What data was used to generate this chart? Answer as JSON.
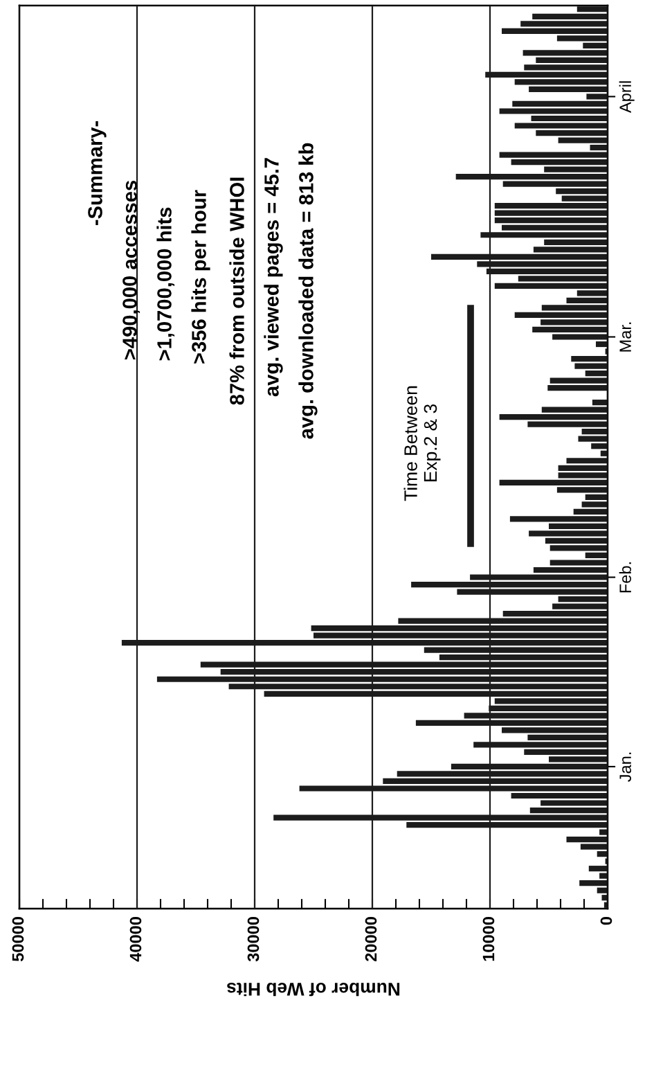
{
  "chart_data": {
    "type": "bar",
    "orientation": "horizontal",
    "xlabel": "Number of Web Hits",
    "categories": [
      null,
      null,
      null,
      null,
      null,
      null,
      null,
      null,
      null,
      null,
      null,
      null,
      "April",
      null,
      null,
      null,
      null,
      null,
      null,
      null,
      null,
      null,
      null,
      null,
      null,
      null,
      null,
      null,
      null,
      null,
      null,
      null,
      null,
      null,
      null,
      null,
      null,
      null,
      null,
      null,
      null,
      null,
      null,
      null,
      null,
      "Mar.",
      null,
      null,
      null,
      null,
      null,
      null,
      null,
      null,
      null,
      null,
      null,
      null,
      null,
      null,
      null,
      null,
      null,
      null,
      null,
      null,
      null,
      null,
      null,
      null,
      null,
      null,
      null,
      null,
      null,
      null,
      null,
      null,
      "Feb.",
      null,
      null,
      null,
      null,
      null,
      null,
      null,
      null,
      null,
      null,
      null,
      null,
      null,
      null,
      null,
      null,
      null,
      null,
      null,
      null,
      null,
      null,
      null,
      null,
      null,
      "Jan.",
      null,
      null,
      null,
      null,
      null,
      null,
      null,
      null,
      null,
      null,
      null,
      null,
      null,
      null,
      null,
      null,
      null,
      null,
      null
    ],
    "values": [
      2600,
      6400,
      7400,
      9000,
      4300,
      2100,
      7200,
      6100,
      7100,
      10400,
      7900,
      6700,
      1800,
      8100,
      9200,
      6500,
      7900,
      6100,
      4200,
      1500,
      9200,
      8200,
      5400,
      12900,
      8900,
      4400,
      3900,
      9600,
      9600,
      9600,
      9000,
      10800,
      5400,
      6300,
      15000,
      11100,
      10300,
      7600,
      9600,
      2600,
      3500,
      5600,
      7900,
      5700,
      6400,
      4700,
      1000,
      200,
      3100,
      2800,
      1900,
      4900,
      5100,
      null,
      1300,
      5600,
      9200,
      6800,
      2200,
      2500,
      1400,
      600,
      3500,
      4200,
      4200,
      9200,
      4300,
      1900,
      2200,
      2900,
      8300,
      5000,
      6700,
      5300,
      4900,
      1900,
      4900,
      6300,
      11700,
      16700,
      12800,
      4200,
      4700,
      8900,
      17800,
      25200,
      25000,
      41300,
      15600,
      14300,
      34600,
      32900,
      38300,
      32200,
      29200,
      9600,
      10100,
      12200,
      16300,
      9000,
      6800,
      11400,
      7100,
      5000,
      13300,
      17900,
      19100,
      26200,
      8200,
      5700,
      6600,
      28400,
      17100,
      700,
      3500,
      2300,
      900,
      200,
      1600,
      700,
      2400,
      900,
      500,
      300
    ],
    "color": "#1c1c1c",
    "xlim": [
      50000,
      0
    ],
    "xticks": [
      0,
      {
        "value": 2000,
        "label": null
      },
      {
        "value": 4000,
        "label": null
      },
      {
        "value": 6000,
        "label": null
      },
      {
        "value": 8000,
        "label": null
      },
      10000,
      {
        "value": 12000,
        "label": null
      },
      {
        "value": 14000,
        "label": null
      },
      {
        "value": 16000,
        "label": null
      },
      {
        "value": 18000,
        "label": null
      },
      20000,
      {
        "value": 22000,
        "label": null
      },
      {
        "value": 24000,
        "label": null
      },
      {
        "value": 26000,
        "label": null
      },
      {
        "value": 28000,
        "label": null
      },
      30000,
      {
        "value": 32000,
        "label": null
      },
      {
        "value": 34000,
        "label": null
      },
      {
        "value": 36000,
        "label": null
      },
      {
        "value": 38000,
        "label": null
      },
      40000,
      {
        "value": 42000,
        "label": null
      },
      {
        "value": 44000,
        "label": null
      },
      {
        "value": 46000,
        "label": null
      },
      {
        "value": 48000,
        "label": null
      },
      50000
    ],
    "grid": "x",
    "annotations": [
      "-Summary-",
      ">490,000 accesses",
      ">1,0700,000 hits",
      ">356 hits per hour",
      "87% from outside WHOI",
      "avg. viewed pages = 45.7",
      "avg. downloaded data = 813 kb",
      "Time Between\nExp.2 & 3"
    ]
  }
}
